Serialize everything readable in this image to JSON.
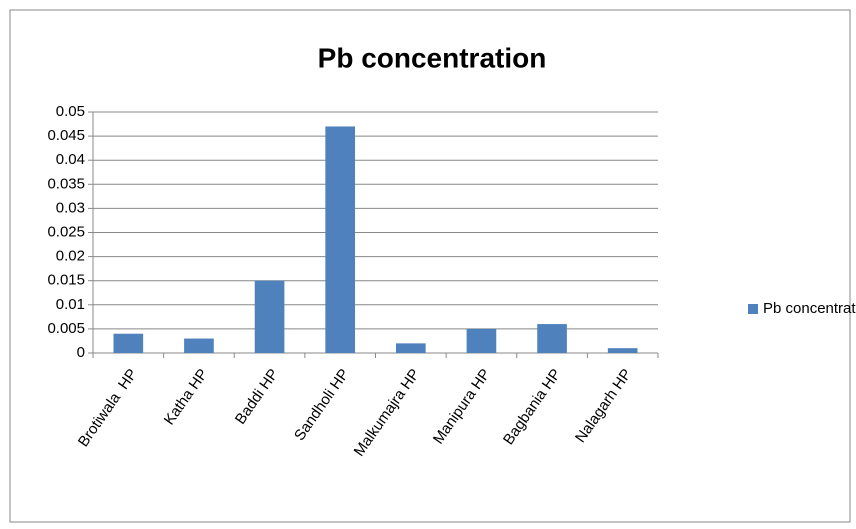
{
  "chart_data": {
    "type": "bar",
    "title": "Pb concentration",
    "categories": [
      "Brotiwala  HP",
      "Katha HP",
      "Baddi HP",
      "Sandholi HP",
      "Malkumajra HP",
      "Manipura HP",
      "Bagbania HP",
      "Nalagarh HP"
    ],
    "series": [
      {
        "name": "Pb concentration",
        "color": "#4f81bd",
        "values": [
          0.004,
          0.003,
          0.015,
          0.047,
          0.002,
          0.005,
          0.006,
          0.001
        ]
      }
    ],
    "ylim": [
      0,
      0.05
    ],
    "yticks": [
      0,
      0.005,
      0.01,
      0.015,
      0.02,
      0.025,
      0.03,
      0.035,
      0.04,
      0.045,
      0.05
    ],
    "grid": true,
    "legend": "right"
  }
}
